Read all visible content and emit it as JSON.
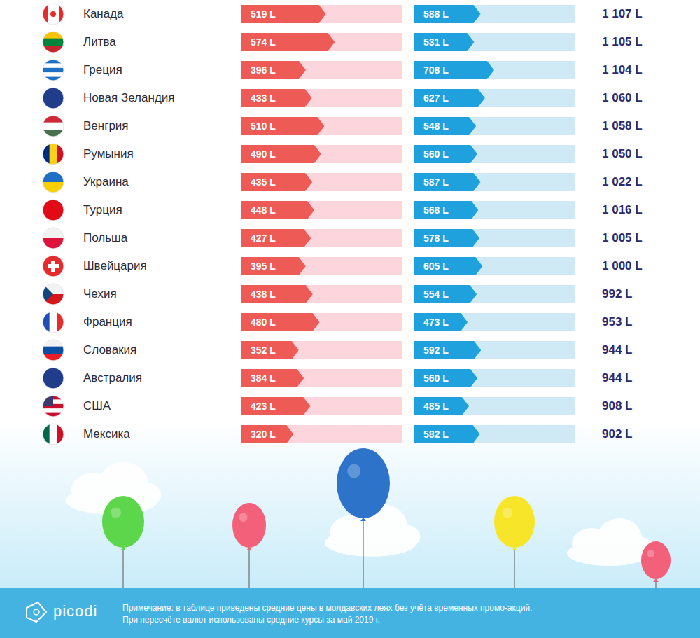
{
  "chart_data": [
    {
      "type": "bar",
      "orientation": "horizontal",
      "categories": [
        "Канада",
        "Литва",
        "Греция",
        "Новая Зеландия",
        "Венгрия",
        "Румыния",
        "Украина",
        "Турция",
        "Польша",
        "Швейцария",
        "Чехия",
        "Франция",
        "Словакия",
        "Австралия",
        "США",
        "Мексика"
      ],
      "values": [
        519,
        574,
        396,
        433,
        510,
        490,
        435,
        448,
        427,
        395,
        438,
        480,
        352,
        384,
        423,
        320
      ],
      "value_labels": [
        "519 L",
        "574 L",
        "396 L",
        "433 L",
        "510 L",
        "490 L",
        "435 L",
        "448 L",
        "427 L",
        "395 L",
        "438 L",
        "480 L",
        "352 L",
        "384 L",
        "423 L",
        "320 L"
      ],
      "color": "#ee5a55",
      "xlim": [
        0,
        990
      ],
      "data_labels": true,
      "tick_labels": false
    },
    {
      "type": "bar",
      "orientation": "horizontal",
      "categories": [
        "Канада",
        "Литва",
        "Греция",
        "Новая Зеландия",
        "Венгрия",
        "Румыния",
        "Украина",
        "Турция",
        "Польша",
        "Швейцария",
        "Чехия",
        "Франция",
        "Словакия",
        "Австралия",
        "США",
        "Мексика"
      ],
      "values": [
        588,
        531,
        708,
        627,
        548,
        560,
        587,
        568,
        578,
        605,
        554,
        473,
        592,
        560,
        485,
        582
      ],
      "value_labels": [
        "588 L",
        "531 L",
        "708 L",
        "627 L",
        "548 L",
        "560 L",
        "587 L",
        "568 L",
        "578 L",
        "605 L",
        "554 L",
        "473 L",
        "592 L",
        "560 L",
        "485 L",
        "582 L"
      ],
      "color": "#1ea1dc",
      "xlim": [
        0,
        1430
      ],
      "data_labels": true,
      "tick_labels": false
    }
  ],
  "totals": [
    "1 107 L",
    "1 105 L",
    "1 104 L",
    "1 060 L",
    "1 058 L",
    "1 050 L",
    "1 022 L",
    "1 016 L",
    "1 005 L",
    "1 000 L",
    "992 L",
    "953 L",
    "944 L",
    "944 L",
    "908 L",
    "902 L"
  ],
  "footer": {
    "logo": "picodi",
    "note": [
      "Примечание: в таблице приведены средние цены в молдавских леях без учёта временных промо-акций.",
      "При пересчёте валют использованы средние курсы за май 2019 г."
    ]
  }
}
